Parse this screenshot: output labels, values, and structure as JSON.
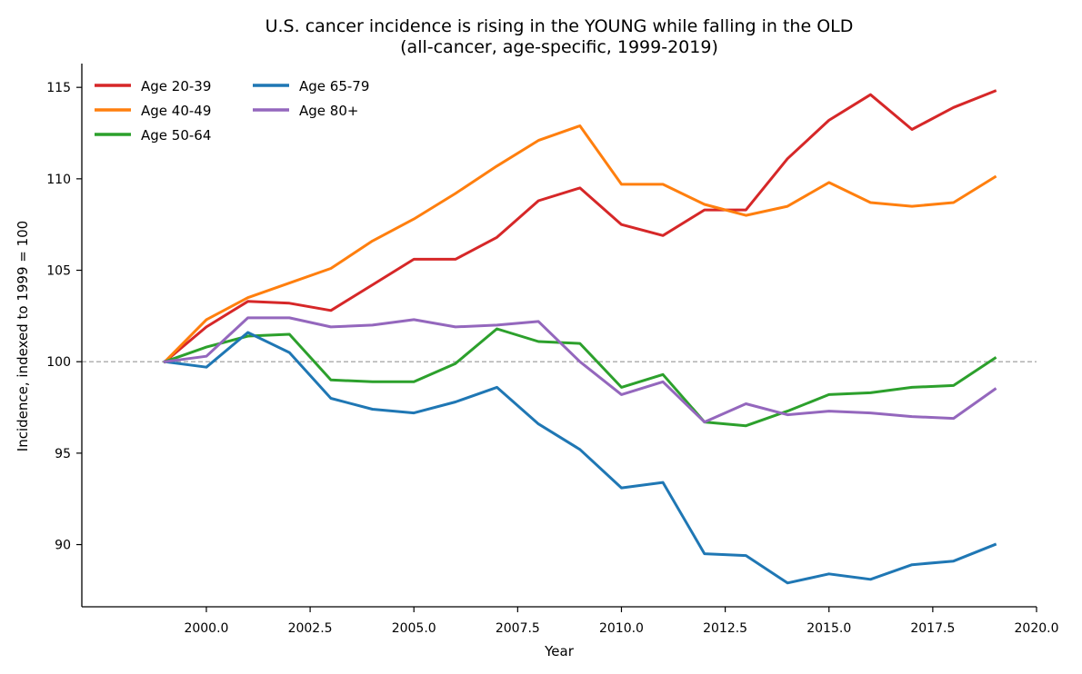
{
  "chart_data": {
    "type": "line",
    "title": "U.S. cancer incidence is rising in the YOUNG while falling in the OLD",
    "subtitle": "(all-cancer, age-specific, 1999-2019)",
    "xlabel": "Year",
    "ylabel": "Incidence, indexed to 1999 = 100",
    "xlim": [
      1997.0,
      2020.0
    ],
    "ylim": [
      86.6,
      116.3
    ],
    "x_ticks": [
      2000.0,
      2002.5,
      2005.0,
      2007.5,
      2010.0,
      2012.5,
      2015.0,
      2017.5,
      2020.0
    ],
    "x_tick_labels": [
      "2000.0",
      "2002.5",
      "2005.0",
      "2007.5",
      "2010.0",
      "2012.5",
      "2015.0",
      "2017.5",
      "2020.0"
    ],
    "y_ticks": [
      90,
      95,
      100,
      105,
      110,
      115
    ],
    "y_tick_labels": [
      "90",
      "95",
      "100",
      "105",
      "110",
      "115"
    ],
    "grid": false,
    "reference_line": {
      "y": 100,
      "style": "dashed",
      "color": "#999999"
    },
    "legend": {
      "position": "top-left",
      "columns": 2
    },
    "x": [
      1999,
      2000,
      2001,
      2002,
      2003,
      2004,
      2005,
      2006,
      2007,
      2008,
      2009,
      2010,
      2011,
      2012,
      2013,
      2014,
      2015,
      2016,
      2017,
      2018,
      2019
    ],
    "series": [
      {
        "name": "Age 20-39",
        "color": "#d62728",
        "values": [
          100.0,
          101.9,
          103.3,
          103.2,
          102.8,
          104.2,
          105.6,
          105.6,
          106.8,
          108.8,
          109.5,
          107.5,
          106.9,
          108.3,
          108.3,
          111.1,
          113.2,
          114.6,
          112.7,
          113.9,
          114.8
        ]
      },
      {
        "name": "Age 40-49",
        "color": "#ff7f0e",
        "values": [
          100.0,
          102.3,
          103.5,
          104.3,
          105.1,
          106.6,
          107.8,
          109.2,
          110.7,
          112.1,
          112.9,
          109.7,
          109.7,
          108.6,
          108.0,
          108.5,
          109.8,
          108.7,
          108.5,
          108.7,
          110.1
        ]
      },
      {
        "name": "Age 50-64",
        "color": "#2ca02c",
        "values": [
          100.0,
          100.8,
          101.4,
          101.5,
          99.0,
          98.9,
          98.9,
          99.9,
          101.8,
          101.1,
          101.0,
          98.6,
          99.3,
          96.7,
          96.5,
          97.3,
          98.2,
          98.3,
          98.6,
          98.7,
          100.2
        ]
      },
      {
        "name": "Age 65-79",
        "color": "#1f77b4",
        "values": [
          100.0,
          99.7,
          101.6,
          100.5,
          98.0,
          97.4,
          97.2,
          97.8,
          98.6,
          96.6,
          95.2,
          93.1,
          93.4,
          89.5,
          89.4,
          87.9,
          88.4,
          88.1,
          88.9,
          89.1,
          90.0
        ]
      },
      {
        "name": "Age 80+",
        "color": "#9467bd",
        "values": [
          100.0,
          100.3,
          102.4,
          102.4,
          101.9,
          102.0,
          102.3,
          101.9,
          102.0,
          102.2,
          100.0,
          98.2,
          98.9,
          96.7,
          97.7,
          97.1,
          97.3,
          97.2,
          97.0,
          96.9,
          98.5
        ]
      }
    ]
  }
}
